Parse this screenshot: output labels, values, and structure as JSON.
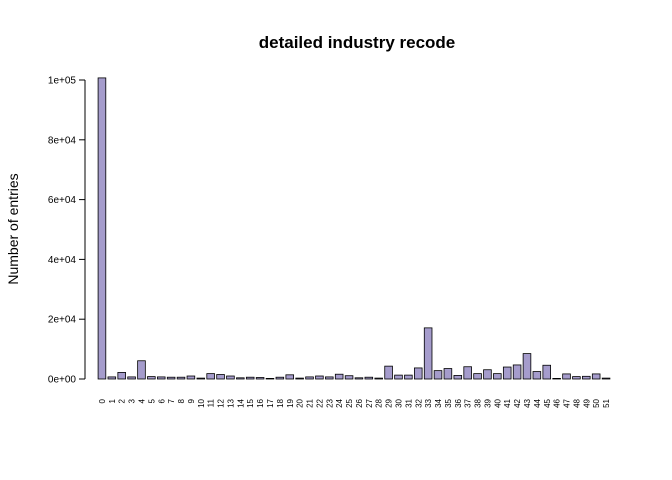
{
  "chart_data": {
    "type": "bar",
    "title": "detailed industry recode",
    "xlabel": "",
    "ylabel": "Number of entries",
    "ylim": [
      0,
      100000
    ],
    "yticks": [
      0,
      20000,
      40000,
      60000,
      80000,
      100000
    ],
    "ytick_labels": [
      "0e+00",
      "2e+04",
      "4e+04",
      "6e+04",
      "8e+04",
      "1e+05"
    ],
    "bar_color": "#a59ccc",
    "categories": [
      "0",
      "1",
      "2",
      "3",
      "4",
      "5",
      "6",
      "7",
      "8",
      "9",
      "10",
      "11",
      "12",
      "13",
      "14",
      "15",
      "16",
      "17",
      "18",
      "19",
      "20",
      "21",
      "22",
      "23",
      "24",
      "25",
      "26",
      "27",
      "28",
      "29",
      "30",
      "31",
      "32",
      "33",
      "34",
      "35",
      "36",
      "37",
      "38",
      "39",
      "40",
      "41",
      "42",
      "43",
      "44",
      "45",
      "46",
      "47",
      "48",
      "49",
      "50",
      "51"
    ],
    "values": [
      100700,
      700,
      2200,
      700,
      6100,
      800,
      700,
      600,
      600,
      1000,
      300,
      1800,
      1500,
      1000,
      400,
      600,
      500,
      200,
      600,
      1400,
      300,
      700,
      1000,
      700,
      1600,
      1100,
      400,
      600,
      300,
      4300,
      1300,
      1300,
      3700,
      17100,
      2800,
      3500,
      1200,
      4100,
      1800,
      3100,
      1800,
      4000,
      4700,
      8500,
      2500,
      4600,
      200,
      1700,
      800,
      900,
      1700,
      300
    ]
  }
}
